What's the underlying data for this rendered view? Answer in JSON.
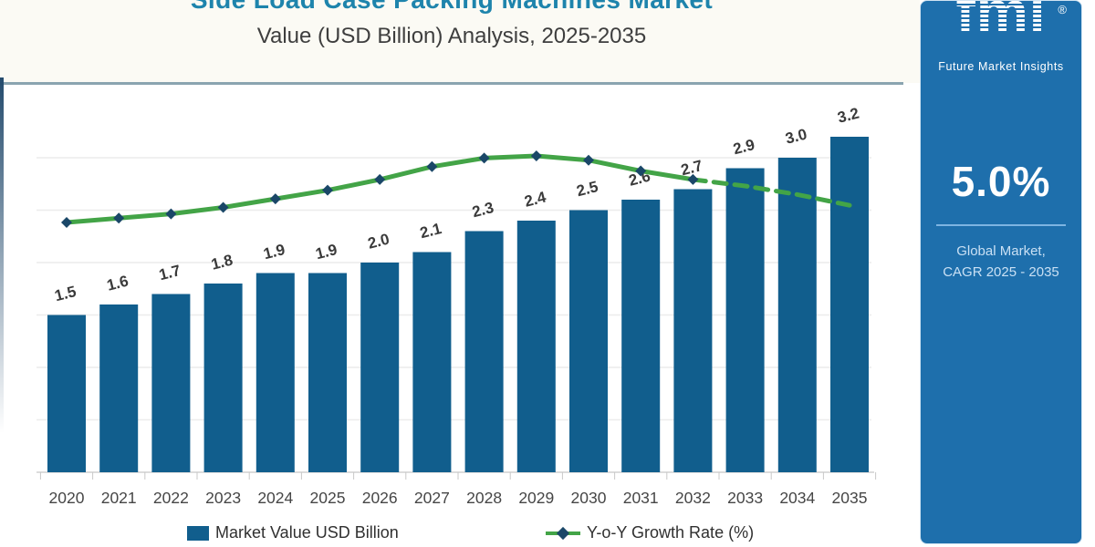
{
  "title": {
    "line1": "Side Load Case Packing Machines Market",
    "line2": "Value (USD Billion) Analysis, 2025-2035"
  },
  "legend": {
    "bar_label": "Market Value USD Billion",
    "line_label": "Y-o-Y Growth Rate (%)"
  },
  "sidebar": {
    "logo_text": "fmi",
    "logo_reg": "®",
    "logo_subtext": "Future Market Insights",
    "cagr_value": "5.0%",
    "caption_line1": "Global Market,",
    "caption_line2": "CAGR 2025 - 2035"
  },
  "colors": {
    "bar": "#115E8D",
    "line": "#43A447",
    "marker": "#1A4768",
    "grid": "#ECECEC",
    "axis": "#D0D0D0",
    "tick": "#C9C9C9",
    "sidebar_bg": "#1E6FAC",
    "title_accent": "#1E84AC"
  },
  "chart_data": {
    "type": "bar+line",
    "title": "Side Load Case Packing Machines Market Value (USD Billion) Analysis, 2025-2035",
    "categories": [
      "2020",
      "2021",
      "2022",
      "2023",
      "2024",
      "2025",
      "2026",
      "2027",
      "2028",
      "2029",
      "2030",
      "2031",
      "2032",
      "2033",
      "2034",
      "2035"
    ],
    "series": [
      {
        "name": "Market Value USD Billion",
        "type": "bar",
        "values": [
          1.5,
          1.6,
          1.7,
          1.8,
          1.9,
          1.9,
          2.0,
          2.1,
          2.3,
          2.4,
          2.5,
          2.6,
          2.7,
          2.9,
          3.0,
          3.2
        ]
      },
      {
        "name": "Y-o-Y Growth Rate (%)",
        "type": "line",
        "values": [
          4.8,
          5.0,
          5.2,
          5.5,
          5.9,
          6.3,
          6.8,
          7.4,
          7.8,
          7.9,
          7.7,
          7.2,
          6.8,
          6.5,
          6.1,
          5.6
        ],
        "values_estimated": true
      }
    ],
    "bar_labels_shown": true,
    "ylim_left": [
      0,
      3.5
    ],
    "right_axis_hidden": true,
    "grid": "horizontal-faint",
    "legend_position": "bottom"
  }
}
